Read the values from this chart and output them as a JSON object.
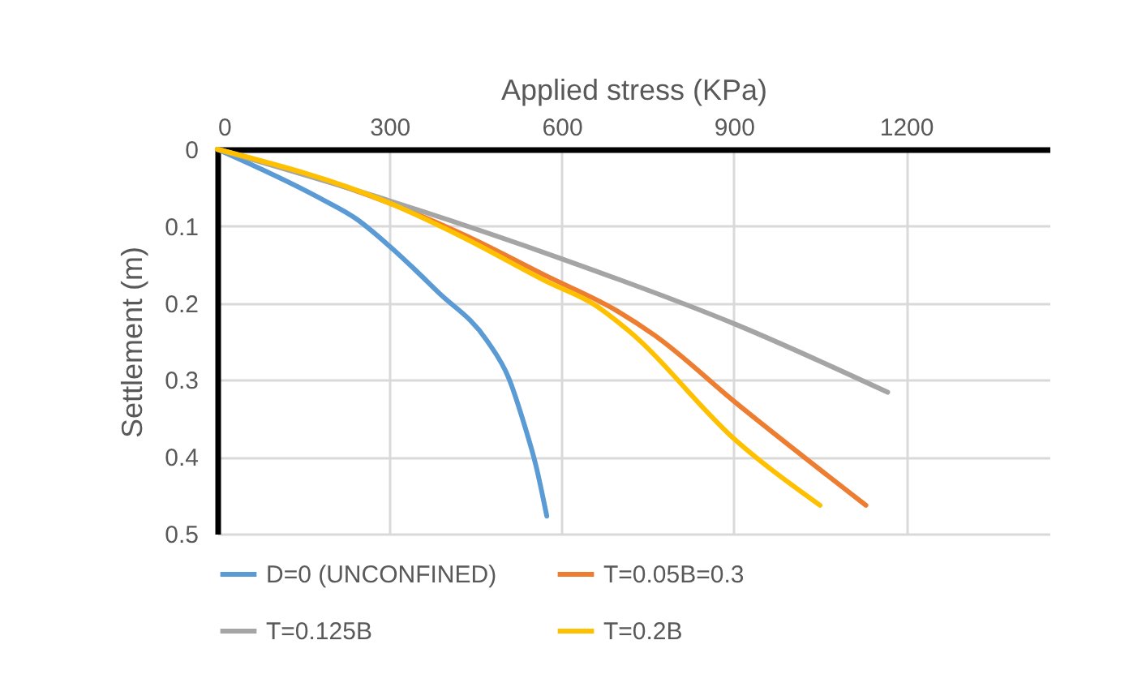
{
  "chart_data": {
    "type": "line",
    "xlabel": "Applied stress (KPa)",
    "ylabel": "Settlement (m)",
    "xlim": [
      0,
      1450
    ],
    "xticks": [
      0,
      300,
      600,
      900,
      1200
    ],
    "ylim": [
      0.5,
      0
    ],
    "yticks": [
      0,
      0.1,
      0.2,
      0.3,
      0.4,
      0.5
    ],
    "grid": true,
    "legend": "bottom",
    "marker": "none",
    "line_style": "solid",
    "series": [
      {
        "name": "D=0 (UNCONFINED)",
        "color": "#5b9bd5",
        "x": [
          0,
          177,
          243,
          300,
          385,
          470,
          508,
          536,
          555,
          574
        ],
        "values": [
          0,
          0.063,
          0.091,
          0.126,
          0.186,
          0.249,
          0.298,
          0.361,
          0.411,
          0.477
        ]
      },
      {
        "name": "T=0.05B=0.3",
        "color": "#ed7d31",
        "x": [
          0,
          300,
          432,
          574,
          696,
          762,
          904,
          1130
        ],
        "values": [
          0,
          0.07,
          0.112,
          0.165,
          0.21,
          0.242,
          0.33,
          0.463
        ]
      },
      {
        "name": "T=0.125B",
        "color": "#a5a5a5",
        "x": [
          0,
          300,
          602,
          904,
          1168
        ],
        "values": [
          0,
          0.067,
          0.143,
          0.228,
          0.316
        ]
      },
      {
        "name": "T=0.2B",
        "color": "#ffc000",
        "x": [
          0,
          300,
          432,
          574,
          659,
          715,
          904,
          1050
        ],
        "values": [
          0,
          0.07,
          0.116,
          0.172,
          0.203,
          0.235,
          0.379,
          0.463
        ]
      }
    ]
  }
}
